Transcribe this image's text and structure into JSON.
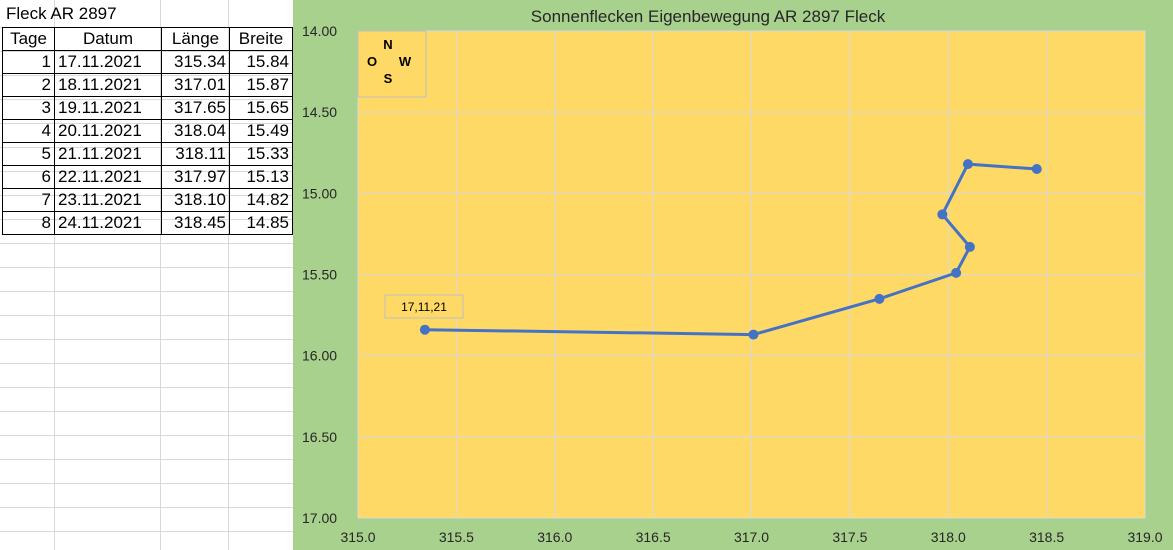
{
  "sheet": {
    "title": "Fleck AR 2897",
    "headers": [
      "Tage",
      "Datum",
      "Länge",
      "Breite"
    ],
    "rows": [
      [
        "1",
        "17.11.2021",
        "315.34",
        "15.84"
      ],
      [
        "2",
        "18.11.2021",
        "317.01",
        "15.87"
      ],
      [
        "3",
        "19.11.2021",
        "317.65",
        "15.65"
      ],
      [
        "4",
        "20.11.2021",
        "318.04",
        "15.49"
      ],
      [
        "5",
        "21.11.2021",
        "318.11",
        "15.33"
      ],
      [
        "6",
        "22.11.2021",
        "317.97",
        "15.13"
      ],
      [
        "7",
        "23.11.2021",
        "318.10",
        "14.82"
      ],
      [
        "8",
        "24.11.2021",
        "318.45",
        "14.85"
      ]
    ]
  },
  "chart_data": {
    "type": "line",
    "title": "Sonnenflecken Eigenbewegung AR 2897 Fleck",
    "xlabel": "",
    "ylabel": "",
    "xlim": [
      315.0,
      319.0
    ],
    "ylim": [
      14.0,
      17.0
    ],
    "y_inverted": true,
    "x_ticks": [
      "315.0",
      "315.5",
      "316.0",
      "316.5",
      "317.0",
      "317.5",
      "318.0",
      "318.5",
      "319.0"
    ],
    "y_ticks": [
      "14.00",
      "14.50",
      "15.00",
      "15.50",
      "16.00",
      "16.50",
      "17.00"
    ],
    "grid": true,
    "series": [
      {
        "color": "#4472c4",
        "points": [
          {
            "x": 315.34,
            "y": 15.84
          },
          {
            "x": 317.01,
            "y": 15.87
          },
          {
            "x": 317.65,
            "y": 15.65
          },
          {
            "x": 318.04,
            "y": 15.49
          },
          {
            "x": 318.11,
            "y": 15.33
          },
          {
            "x": 317.97,
            "y": 15.13
          },
          {
            "x": 318.1,
            "y": 14.82
          },
          {
            "x": 318.45,
            "y": 14.85
          }
        ]
      }
    ],
    "annotation": "17,11,21",
    "compass": {
      "n": "N",
      "o": "O",
      "w": "W",
      "s": "S"
    },
    "colors": {
      "plot_area": "#ffd966",
      "chart_area": "#a9d18e",
      "gridline": "#d9d9d9"
    }
  }
}
